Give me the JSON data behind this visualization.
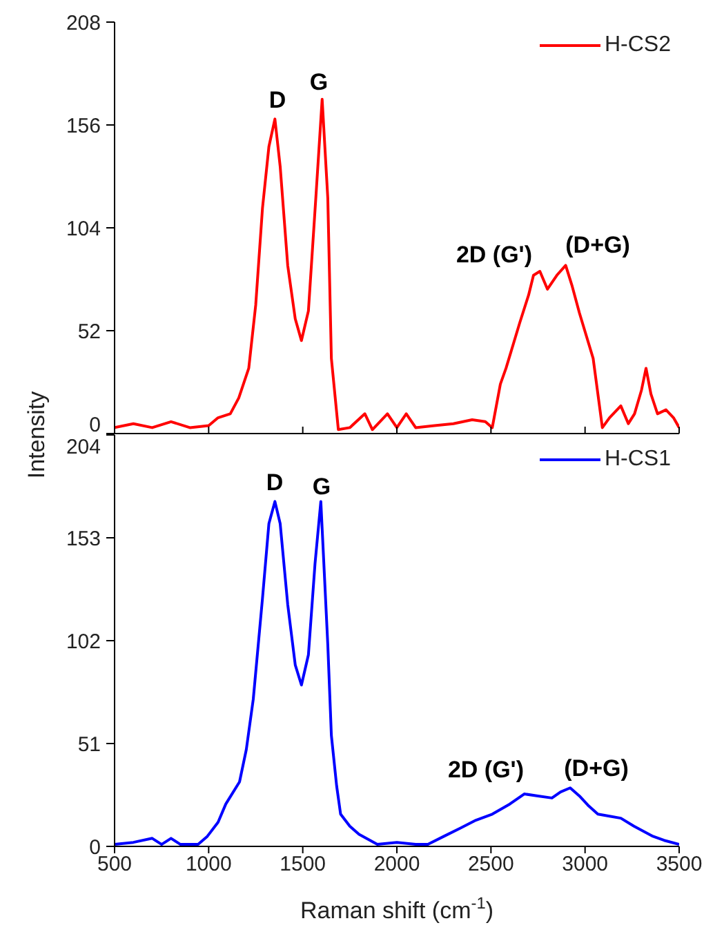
{
  "chart_data": [
    {
      "type": "line",
      "ylabel": "Intensity",
      "legend": "top right",
      "tick_labels": "y",
      "xlim": [
        500,
        3500
      ],
      "xticks": [
        500,
        1000,
        1500,
        2000,
        2500,
        3000,
        3500
      ],
      "ylim": [
        0,
        208
      ],
      "yticks": [
        0,
        52,
        104,
        156,
        208
      ],
      "series": [
        {
          "name": "H-CS2",
          "color": "#ff0000",
          "x": [
            500,
            600,
            700,
            800,
            900,
            1000,
            1050,
            1115,
            1160,
            1213,
            1250,
            1286,
            1320,
            1352,
            1380,
            1420,
            1460,
            1493,
            1530,
            1570,
            1603,
            1633,
            1652,
            1689,
            1750,
            1830,
            1870,
            1950,
            2000,
            2050,
            2100,
            2200,
            2300,
            2400,
            2470,
            2507,
            2550,
            2580,
            2653,
            2700,
            2726,
            2760,
            2800,
            2850,
            2897,
            2930,
            2970,
            3043,
            3092,
            3130,
            3190,
            3230,
            3263,
            3300,
            3324,
            3350,
            3385,
            3430,
            3470,
            3500
          ],
          "values": [
            3,
            5,
            3,
            6,
            3,
            4,
            8,
            10,
            18,
            33,
            65,
            114,
            145,
            159,
            135,
            85,
            58,
            47,
            62,
            120,
            169,
            119,
            38,
            2,
            3,
            10,
            2,
            10,
            3,
            10,
            3,
            4,
            5,
            7,
            6,
            3,
            25,
            33,
            56,
            70,
            80,
            82,
            73,
            80,
            85,
            75,
            61,
            38,
            3,
            8,
            14,
            5,
            10,
            22,
            33,
            20,
            10,
            12,
            8,
            3
          ]
        }
      ],
      "annotations": [
        "D",
        "G",
        "2D (G')",
        "(D+G)"
      ]
    },
    {
      "type": "line",
      "xlabel": "Raman shift (cm$^{-1}$)",
      "legend": "top right",
      "xlim": [
        500,
        3500
      ],
      "xticks": [
        500,
        1000,
        1500,
        2000,
        2500,
        3000,
        3500
      ],
      "ylim": [
        0,
        204
      ],
      "yticks": [
        0,
        51,
        102,
        153,
        204
      ],
      "series": [
        {
          "name": "H-CS1",
          "color": "#0000ff",
          "x": [
            500,
            600,
            700,
            750,
            800,
            850,
            944,
            993,
            1050,
            1091,
            1164,
            1200,
            1237,
            1286,
            1320,
            1352,
            1380,
            1420,
            1460,
            1493,
            1530,
            1565,
            1596,
            1633,
            1652,
            1680,
            1701,
            1750,
            1799,
            1896,
            2000,
            2100,
            2165,
            2250,
            2336,
            2420,
            2507,
            2600,
            2677,
            2750,
            2824,
            2870,
            2921,
            2970,
            3020,
            3068,
            3130,
            3190,
            3260,
            3361,
            3420,
            3500
          ],
          "values": [
            1,
            2,
            4,
            1,
            4,
            1,
            1,
            5,
            12,
            21,
            32,
            48,
            73,
            123,
            160,
            171,
            160,
            120,
            90,
            80,
            95,
            140,
            171,
            100,
            55,
            30,
            16,
            10,
            6,
            1,
            2,
            1,
            1,
            5,
            9,
            13,
            16,
            21,
            26,
            25,
            24,
            27,
            29,
            25,
            20,
            16,
            15,
            14,
            10,
            5,
            3,
            1
          ]
        }
      ],
      "annotations": [
        "D",
        "G",
        "2D (G')",
        "(D+G)"
      ]
    }
  ]
}
